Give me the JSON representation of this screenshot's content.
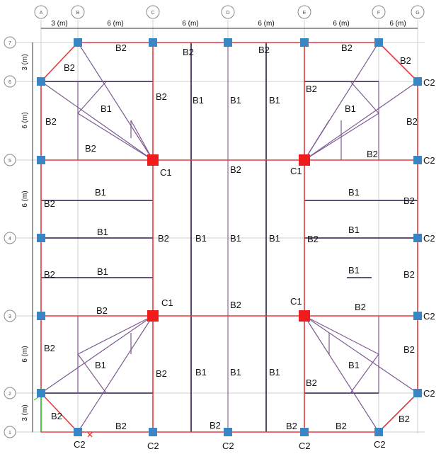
{
  "colors": {
    "grid": "#c8c8c8",
    "red_beam": "#e8383c",
    "dark_beam": "#2e1848",
    "purple_beam": "#8a6a9a",
    "column_blue": "#3a86c4",
    "column_red": "#ee1c1c",
    "axis_green": "#22bb22",
    "axis_red": "#dd2222"
  },
  "grid_x": [
    "A",
    "B",
    "C",
    "D",
    "E",
    "F",
    "G"
  ],
  "grid_y": [
    "7",
    "6",
    "5",
    "4",
    "3",
    "2",
    "1"
  ],
  "dims_top": [
    "3 (m)",
    "6 (m)",
    "6 (m)",
    "6 (m)",
    "6 (m)",
    "6 (m)",
    "3 (m)"
  ],
  "dims_left": [
    "3 (m)",
    "6 (m)",
    "6 (m)",
    "6 (m)",
    "3 (m)"
  ],
  "beam_labels": {
    "b2": "B2",
    "b1": "B1"
  },
  "column_labels": {
    "c1": "C1",
    "c2": "C2"
  }
}
